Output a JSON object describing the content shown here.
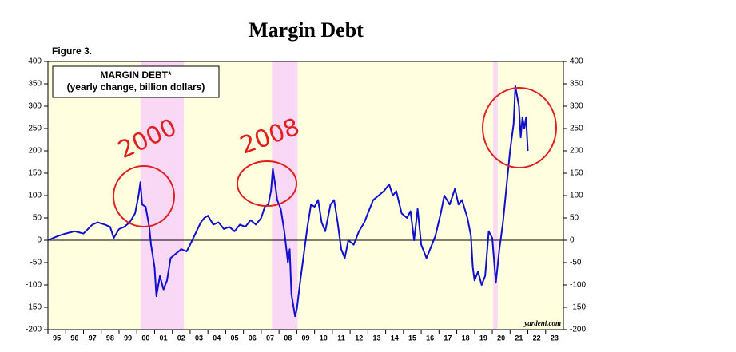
{
  "chart_data": {
    "type": "line",
    "title": "Margin Debt",
    "figure_label": "Figure 3.",
    "legend_note": "(yearly change, billion dollars)",
    "source": "yardeni.com",
    "annotations": [
      "2000",
      "2008"
    ],
    "background": "#ffffe0",
    "shade_color": "#f9d8f5",
    "shaded_ranges": [
      [
        2000.2,
        2002.65
      ],
      [
        2007.6,
        2009.05
      ],
      [
        2020.05,
        2020.3
      ]
    ],
    "xlim": [
      1995,
      2024
    ],
    "xticks": [
      {
        "value": 1995,
        "label": "95"
      },
      {
        "value": 1996,
        "label": "96"
      },
      {
        "value": 1997,
        "label": "97"
      },
      {
        "value": 1998,
        "label": "98"
      },
      {
        "value": 1999,
        "label": "99"
      },
      {
        "value": 2000,
        "label": "00"
      },
      {
        "value": 2001,
        "label": "01"
      },
      {
        "value": 2002,
        "label": "02"
      },
      {
        "value": 2003,
        "label": "03"
      },
      {
        "value": 2004,
        "label": "04"
      },
      {
        "value": 2005,
        "label": "05"
      },
      {
        "value": 2006,
        "label": "06"
      },
      {
        "value": 2007,
        "label": "07"
      },
      {
        "value": 2008,
        "label": "08"
      },
      {
        "value": 2009,
        "label": "09"
      },
      {
        "value": 2010,
        "label": "10"
      },
      {
        "value": 2011,
        "label": "11"
      },
      {
        "value": 2012,
        "label": "12"
      },
      {
        "value": 2013,
        "label": "13"
      },
      {
        "value": 2014,
        "label": "14"
      },
      {
        "value": 2015,
        "label": "15"
      },
      {
        "value": 2016,
        "label": "16"
      },
      {
        "value": 2017,
        "label": "17"
      },
      {
        "value": 2018,
        "label": "18"
      },
      {
        "value": 2019,
        "label": "19"
      },
      {
        "value": 2020,
        "label": "20"
      },
      {
        "value": 2021,
        "label": "21"
      },
      {
        "value": 2022,
        "label": "22"
      },
      {
        "value": 2023,
        "label": "23"
      }
    ],
    "ylim": [
      -200,
      400
    ],
    "yticks": [
      -200,
      -150,
      -100,
      -50,
      0,
      50,
      100,
      150,
      200,
      250,
      300,
      350,
      400
    ],
    "series": [
      {
        "name": "MARGIN DEBT*",
        "color": "#1010cc",
        "x": [
          1995.0,
          1995.3,
          1995.6,
          1996.0,
          1996.5,
          1997.0,
          1997.5,
          1997.8,
          1998.2,
          1998.5,
          1998.7,
          1999.0,
          1999.3,
          1999.6,
          1999.9,
          2000.1,
          2000.2,
          2000.3,
          2000.5,
          2000.7,
          2000.8,
          2001.0,
          2001.1,
          2001.3,
          2001.5,
          2001.7,
          2001.9,
          2002.2,
          2002.5,
          2002.8,
          2003.0,
          2003.3,
          2003.6,
          2003.8,
          2004.0,
          2004.3,
          2004.6,
          2004.9,
          2005.2,
          2005.5,
          2005.8,
          2006.1,
          2006.4,
          2006.7,
          2007.0,
          2007.2,
          2007.4,
          2007.55,
          2007.65,
          2007.8,
          2007.9,
          2008.1,
          2008.3,
          2008.5,
          2008.6,
          2008.7,
          2008.9,
          2009.0,
          2009.2,
          2009.4,
          2009.6,
          2009.8,
          2010.0,
          2010.2,
          2010.4,
          2010.6,
          2010.9,
          2011.1,
          2011.3,
          2011.5,
          2011.7,
          2011.9,
          2012.2,
          2012.5,
          2012.8,
          2013.0,
          2013.3,
          2013.6,
          2013.9,
          2014.2,
          2014.4,
          2014.6,
          2014.9,
          2015.2,
          2015.4,
          2015.6,
          2015.8,
          2016.0,
          2016.3,
          2016.5,
          2016.8,
          2017.1,
          2017.3,
          2017.6,
          2017.9,
          2018.1,
          2018.3,
          2018.6,
          2018.8,
          2018.9,
          2019.0,
          2019.2,
          2019.4,
          2019.6,
          2019.8,
          2020.0,
          2020.2,
          2020.4,
          2020.6,
          2020.8,
          2021.0,
          2021.2,
          2021.3,
          2021.5,
          2021.6,
          2021.7,
          2021.8,
          2021.9,
          2022.0
        ],
        "values": [
          0,
          5,
          10,
          15,
          20,
          15,
          35,
          40,
          35,
          30,
          5,
          25,
          30,
          40,
          60,
          100,
          130,
          80,
          75,
          30,
          -10,
          -60,
          -125,
          -80,
          -110,
          -90,
          -40,
          -30,
          -20,
          -25,
          -10,
          15,
          40,
          50,
          55,
          35,
          40,
          25,
          30,
          20,
          35,
          30,
          45,
          35,
          50,
          75,
          80,
          110,
          160,
          120,
          90,
          70,
          20,
          -50,
          -20,
          -120,
          -170,
          -155,
          -90,
          -30,
          30,
          80,
          75,
          90,
          40,
          20,
          80,
          90,
          40,
          -20,
          -40,
          0,
          -10,
          20,
          40,
          60,
          90,
          100,
          110,
          125,
          100,
          110,
          60,
          50,
          65,
          0,
          70,
          -10,
          -40,
          -20,
          10,
          60,
          100,
          80,
          115,
          80,
          90,
          50,
          10,
          -60,
          -90,
          -70,
          -100,
          -80,
          20,
          5,
          -95,
          -20,
          40,
          120,
          200,
          260,
          345,
          300,
          230,
          275,
          250,
          275,
          200
        ]
      }
    ]
  }
}
